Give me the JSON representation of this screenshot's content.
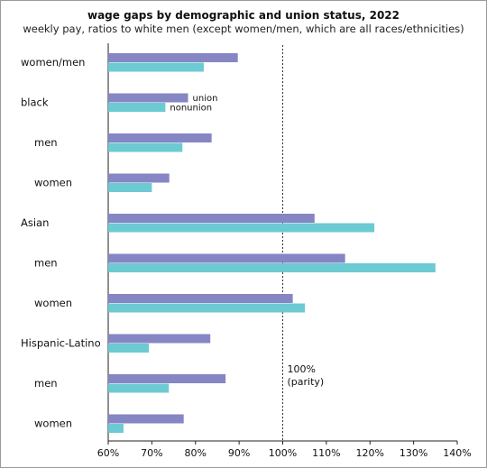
{
  "chart_data": {
    "type": "bar",
    "orientation": "horizontal",
    "title": "wage gaps by demographic and union status, 2022",
    "subtitle": "weekly pay, ratios to white men (except women/men, which are all races/ethnicities)",
    "categories": [
      "women/men",
      "black",
      "men",
      "women",
      "Asian",
      "men",
      "women",
      "Hispanic-Latino",
      "men",
      "women"
    ],
    "category_indent": [
      false,
      false,
      true,
      true,
      false,
      true,
      true,
      false,
      true,
      true
    ],
    "series": [
      {
        "name": "union",
        "color": "#8686c4",
        "values": [
          89.7,
          78.3,
          83.7,
          74.0,
          107.3,
          114.3,
          102.3,
          83.4,
          86.9,
          77.3
        ]
      },
      {
        "name": "nonunion",
        "color": "#6ccad2",
        "values": [
          81.9,
          73.1,
          77.0,
          70.0,
          121.0,
          135.0,
          105.1,
          69.3,
          73.9,
          63.5
        ]
      }
    ],
    "xlim": [
      60,
      140
    ],
    "xticks": [
      "60%",
      "70%",
      "80%",
      "90%",
      "100%",
      "110%",
      "120%",
      "130%",
      "140%"
    ],
    "xtick_values": [
      60,
      70,
      80,
      90,
      100,
      110,
      120,
      130,
      140
    ],
    "reference_line": {
      "value": 100,
      "label_line1": "100%",
      "label_line2": "(parity)",
      "style": "dotted"
    },
    "legend": "inline labels beside the black bars",
    "grid": false
  }
}
